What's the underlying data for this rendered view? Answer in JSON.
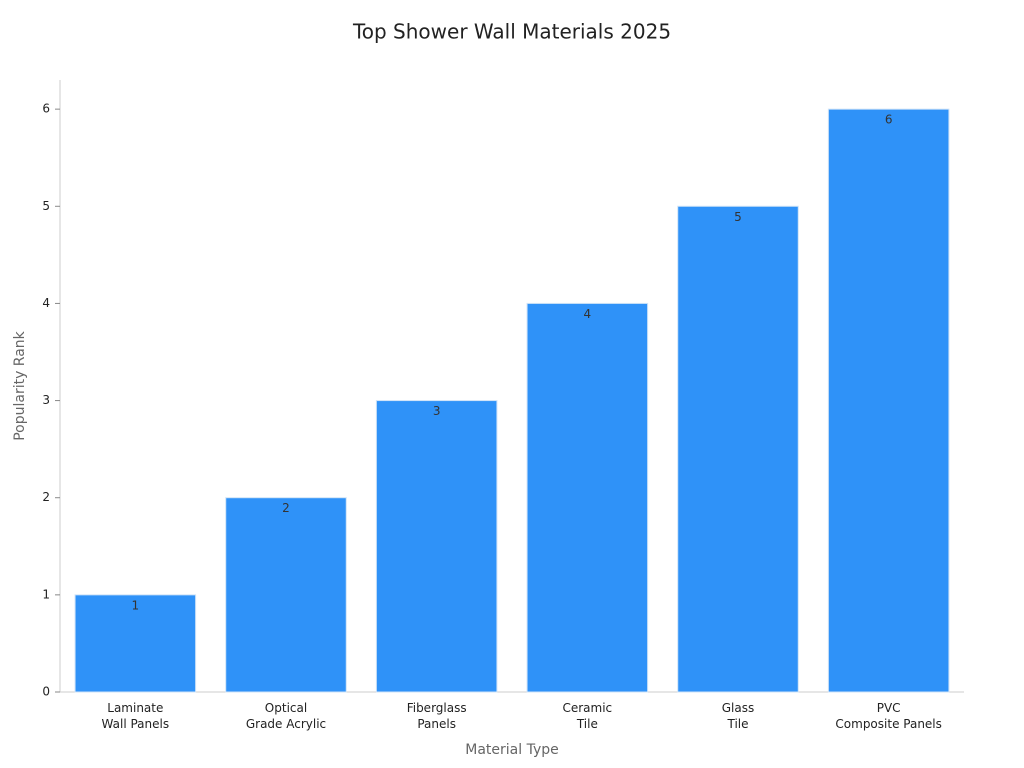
{
  "chart_data": {
    "type": "bar",
    "title": "Top Shower Wall Materials 2025",
    "categories": [
      "Laminate\nWall Panels",
      "Optical\nGrade Acrylic",
      "Fiberglass\nPanels",
      "Ceramic\nTile",
      "Glass\nTile",
      "PVC\nComposite Panels"
    ],
    "values": [
      1,
      2,
      3,
      4,
      5,
      6
    ],
    "color": "#2f92f8",
    "xlabel": "Material Type",
    "ylabel": "Popularity Rank",
    "ylim": [
      0,
      6.3
    ],
    "yticks": [
      0,
      1,
      2,
      3,
      4,
      5,
      6
    ],
    "grid": false
  }
}
